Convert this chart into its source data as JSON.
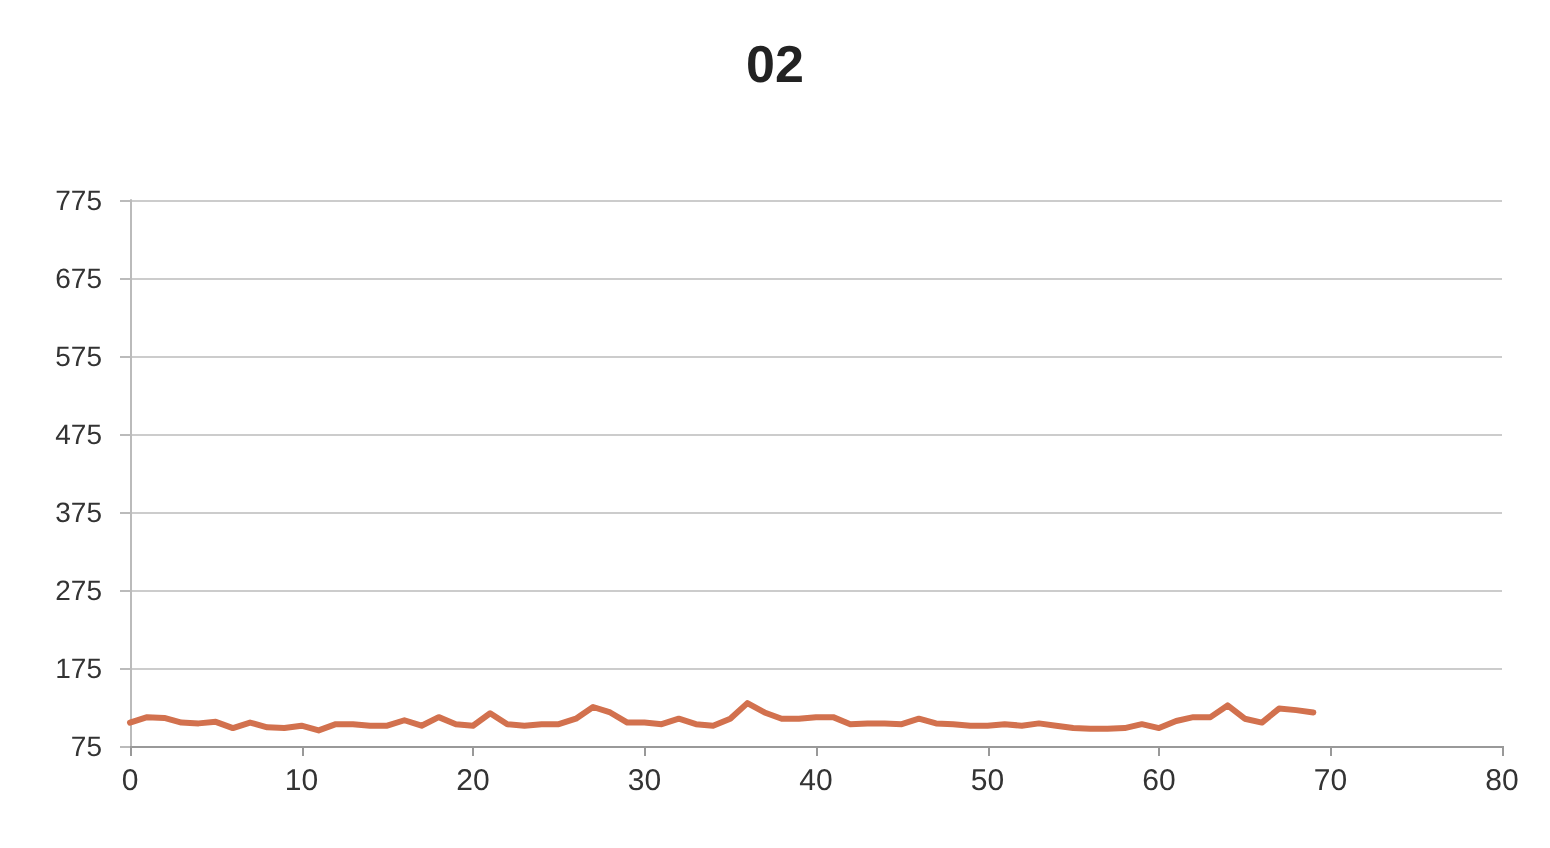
{
  "chart_data": {
    "type": "line",
    "title": "02",
    "x": [
      0,
      1,
      2,
      3,
      4,
      5,
      6,
      7,
      8,
      9,
      10,
      11,
      12,
      13,
      14,
      15,
      16,
      17,
      18,
      19,
      20,
      21,
      22,
      23,
      24,
      25,
      26,
      27,
      28,
      29,
      30,
      31,
      32,
      33,
      34,
      35,
      36,
      37,
      38,
      39,
      40,
      41,
      42,
      43,
      44,
      45,
      46,
      47,
      48,
      49,
      50,
      51,
      52,
      53,
      54,
      55,
      56,
      57,
      58,
      59,
      60,
      61,
      62,
      63,
      64,
      65,
      66,
      67,
      68,
      69
    ],
    "series": [
      {
        "color": "#d2714e",
        "values": [
          105,
          112,
          111,
          105,
          104,
          106,
          98,
          105,
          99,
          98,
          101,
          95,
          103,
          103,
          101,
          101,
          108,
          101,
          112,
          103,
          101,
          117,
          103,
          101,
          103,
          103,
          110,
          125,
          118,
          105,
          105,
          103,
          110,
          103,
          101,
          110,
          130,
          118,
          110,
          110,
          112,
          112,
          103,
          104,
          104,
          103,
          110,
          104,
          103,
          101,
          101,
          103,
          101,
          104,
          101,
          98,
          97,
          97,
          98,
          103,
          98,
          107,
          112,
          112,
          127,
          110,
          105,
          123,
          121,
          118
        ]
      }
    ],
    "xlim": [
      0,
      80
    ],
    "xticks": [
      0,
      10,
      20,
      30,
      40,
      50,
      60,
      70,
      80
    ],
    "ylim": [
      75,
      775
    ],
    "yticks": [
      75,
      175,
      275,
      375,
      475,
      575,
      675,
      775
    ],
    "grid": "y",
    "marker": "none",
    "line_style": "solid"
  }
}
